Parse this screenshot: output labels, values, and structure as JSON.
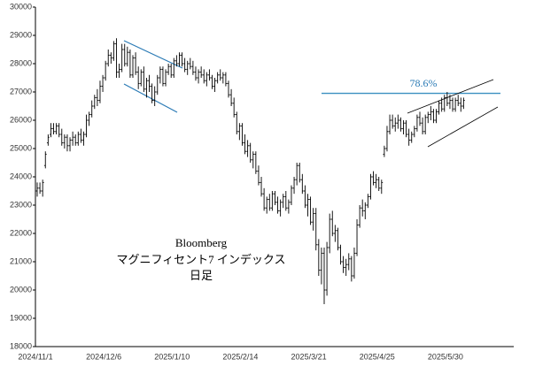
{
  "chart_data": {
    "type": "ohlc",
    "color": "#000000",
    "text_box": [
      "Bloomberg",
      "マグニフィセント7 インデックス",
      "日足"
    ],
    "annotations": [
      "78.6%"
    ],
    "ylim": [
      18000,
      30000
    ],
    "yticks": [
      18000,
      19000,
      20000,
      21000,
      22000,
      23000,
      24000,
      25000,
      26000,
      27000,
      28000,
      29000,
      30000
    ],
    "categories": [
      "2024/11/1",
      null,
      null,
      null,
      null,
      null,
      null,
      null,
      null,
      null,
      null,
      null,
      null,
      null,
      null,
      null,
      null,
      null,
      null,
      null,
      null,
      null,
      null,
      null,
      null,
      "2024/12/6",
      null,
      null,
      null,
      null,
      null,
      null,
      null,
      null,
      null,
      null,
      null,
      null,
      null,
      null,
      null,
      null,
      null,
      null,
      null,
      null,
      null,
      null,
      null,
      null,
      "2025/1/10",
      null,
      null,
      null,
      null,
      null,
      null,
      null,
      null,
      null,
      null,
      null,
      null,
      null,
      null,
      null,
      null,
      null,
      null,
      null,
      null,
      null,
      null,
      null,
      null,
      "2025/2/14",
      null,
      null,
      null,
      null,
      null,
      null,
      null,
      null,
      null,
      null,
      null,
      null,
      null,
      null,
      null,
      null,
      null,
      null,
      null,
      null,
      null,
      null,
      null,
      null,
      "2025/3/21",
      null,
      null,
      null,
      null,
      null,
      null,
      null,
      null,
      null,
      null,
      null,
      null,
      null,
      null,
      null,
      null,
      null,
      null,
      null,
      null,
      null,
      null,
      null,
      null,
      "2025/4/25",
      null,
      null,
      null,
      null,
      null,
      null,
      null,
      null,
      null,
      null,
      null,
      null,
      null,
      null,
      null,
      null,
      null,
      null,
      null,
      null,
      null,
      null,
      null,
      null,
      "2025/5/30",
      null,
      null,
      null,
      null,
      null,
      null
    ],
    "ohlc": [
      [
        23500,
        23800,
        23300,
        23600
      ],
      [
        23600,
        23800,
        23400,
        23500
      ],
      [
        23500,
        23900,
        23300,
        23800
      ],
      [
        24400,
        24900,
        24300,
        24800
      ],
      [
        25200,
        25500,
        25100,
        25400
      ],
      [
        25500,
        25900,
        25400,
        25700
      ],
      [
        25700,
        25900,
        25500,
        25600
      ],
      [
        25600,
        25900,
        25500,
        25800
      ],
      [
        25800,
        25900,
        25400,
        25500
      ],
      [
        25500,
        25700,
        25100,
        25200
      ],
      [
        25200,
        25500,
        25000,
        25400
      ],
      [
        25400,
        25500,
        24900,
        25100
      ],
      [
        25100,
        25400,
        24900,
        25300
      ],
      [
        25300,
        25600,
        25100,
        25400
      ],
      [
        25400,
        25500,
        25100,
        25200
      ],
      [
        25200,
        25600,
        25100,
        25500
      ],
      [
        25500,
        25700,
        25200,
        25300
      ],
      [
        25300,
        25600,
        25100,
        25500
      ],
      [
        25500,
        26200,
        25400,
        26000
      ],
      [
        26000,
        26300,
        25800,
        26200
      ],
      [
        26200,
        26700,
        26100,
        26500
      ],
      [
        26500,
        26900,
        26400,
        26800
      ],
      [
        26800,
        27100,
        26500,
        26700
      ],
      [
        26700,
        27400,
        26600,
        27200
      ],
      [
        27200,
        27600,
        27000,
        27500
      ],
      [
        27500,
        28100,
        27400,
        28000
      ],
      [
        28000,
        28500,
        27900,
        28300
      ],
      [
        28300,
        28400,
        28000,
        28200
      ],
      [
        28200,
        28800,
        28100,
        28700
      ],
      [
        28700,
        28900,
        27500,
        27700
      ],
      [
        27700,
        28000,
        27500,
        27800
      ],
      [
        27800,
        28700,
        27700,
        28500
      ],
      [
        28500,
        28700,
        27900,
        28000
      ],
      [
        28000,
        28600,
        27900,
        28400
      ],
      [
        28400,
        28500,
        27500,
        27600
      ],
      [
        27600,
        28300,
        27500,
        28200
      ],
      [
        28200,
        28400,
        27600,
        27700
      ],
      [
        27700,
        27900,
        27100,
        27300
      ],
      [
        27300,
        27800,
        27200,
        27700
      ],
      [
        27700,
        27900,
        27000,
        27100
      ],
      [
        27100,
        27500,
        26800,
        27400
      ],
      [
        27400,
        27600,
        27000,
        27200
      ],
      [
        27200,
        27300,
        26600,
        26700
      ],
      [
        26700,
        27200,
        26500,
        27000
      ],
      [
        27000,
        27600,
        26900,
        27500
      ],
      [
        27500,
        27900,
        27300,
        27800
      ],
      [
        27800,
        27900,
        27200,
        27300
      ],
      [
        27300,
        27800,
        27200,
        27700
      ],
      [
        27700,
        28000,
        27600,
        27900
      ],
      [
        27900,
        28000,
        27500,
        27600
      ],
      [
        27600,
        28200,
        27500,
        28100
      ],
      [
        28100,
        28300,
        27900,
        28000
      ],
      [
        28000,
        28400,
        27900,
        28300
      ],
      [
        28300,
        28400,
        27900,
        28000
      ],
      [
        28000,
        28200,
        27700,
        27800
      ],
      [
        27800,
        28100,
        27600,
        28000
      ],
      [
        28000,
        28200,
        27800,
        27900
      ],
      [
        27900,
        28100,
        27600,
        27700
      ],
      [
        27700,
        27900,
        27400,
        27500
      ],
      [
        27500,
        27800,
        27300,
        27700
      ],
      [
        27700,
        27900,
        27500,
        27600
      ],
      [
        27600,
        27800,
        27300,
        27400
      ],
      [
        27400,
        27700,
        27200,
        27600
      ],
      [
        27600,
        27800,
        27400,
        27500
      ],
      [
        27500,
        27600,
        27100,
        27200
      ],
      [
        27200,
        27500,
        27000,
        27400
      ],
      [
        27400,
        27700,
        27300,
        27600
      ],
      [
        27600,
        27800,
        27400,
        27500
      ],
      [
        27500,
        27700,
        27300,
        27600
      ],
      [
        27600,
        27700,
        27200,
        27300
      ],
      [
        27300,
        27400,
        26800,
        26900
      ],
      [
        26900,
        27100,
        26500,
        26600
      ],
      [
        26600,
        26800,
        26100,
        26200
      ],
      [
        26200,
        26300,
        25500,
        25600
      ],
      [
        25600,
        25900,
        25300,
        25800
      ],
      [
        25800,
        25900,
        25100,
        25200
      ],
      [
        25200,
        25500,
        24800,
        24900
      ],
      [
        24900,
        25300,
        24700,
        25100
      ],
      [
        25100,
        25200,
        24500,
        24600
      ],
      [
        24600,
        24900,
        24300,
        24800
      ],
      [
        24800,
        24900,
        24100,
        24200
      ],
      [
        24200,
        24400,
        23700,
        23800
      ],
      [
        23800,
        24000,
        23300,
        23400
      ],
      [
        23400,
        23600,
        22800,
        22900
      ],
      [
        22900,
        23300,
        22700,
        23200
      ],
      [
        23200,
        23400,
        22800,
        22900
      ],
      [
        22900,
        23500,
        22800,
        23400
      ],
      [
        23400,
        23500,
        23000,
        23100
      ],
      [
        23100,
        23300,
        22700,
        22800
      ],
      [
        22800,
        23200,
        22600,
        23100
      ],
      [
        23100,
        23400,
        22900,
        23300
      ],
      [
        23300,
        23500,
        22800,
        22900
      ],
      [
        22900,
        23200,
        22700,
        23100
      ],
      [
        23100,
        23700,
        23000,
        23600
      ],
      [
        23600,
        24000,
        23400,
        23900
      ],
      [
        23900,
        24500,
        23700,
        24400
      ],
      [
        24400,
        24500,
        23800,
        23900
      ],
      [
        23900,
        24100,
        23400,
        23500
      ],
      [
        23500,
        23700,
        22900,
        23000
      ],
      [
        23000,
        23400,
        22600,
        23200
      ],
      [
        23200,
        23300,
        22300,
        22400
      ],
      [
        22400,
        22900,
        22100,
        22700
      ],
      [
        22700,
        22900,
        21400,
        21600
      ],
      [
        21600,
        21800,
        20500,
        20700
      ],
      [
        20700,
        21500,
        20200,
        21300
      ],
      [
        21300,
        21500,
        19500,
        20000
      ],
      [
        20000,
        21700,
        19800,
        21500
      ],
      [
        21500,
        22700,
        21300,
        22500
      ],
      [
        22500,
        22800,
        21900,
        22000
      ],
      [
        22000,
        22300,
        21700,
        22100
      ],
      [
        22100,
        22200,
        21400,
        21500
      ],
      [
        21500,
        21600,
        20900,
        21000
      ],
      [
        21000,
        21200,
        20600,
        20800
      ],
      [
        20800,
        21100,
        20500,
        20900
      ],
      [
        20900,
        21300,
        20700,
        21100
      ],
      [
        21100,
        21200,
        20300,
        20500
      ],
      [
        20500,
        21500,
        20400,
        21300
      ],
      [
        21300,
        22500,
        21200,
        22300
      ],
      [
        22300,
        23000,
        22200,
        22900
      ],
      [
        22900,
        23200,
        22600,
        22800
      ],
      [
        22800,
        23100,
        22500,
        23000
      ],
      [
        23000,
        23400,
        22900,
        23300
      ],
      [
        23300,
        24100,
        23200,
        24000
      ],
      [
        24000,
        24200,
        23700,
        23800
      ],
      [
        23800,
        24100,
        23600,
        23900
      ],
      [
        23900,
        24000,
        23500,
        23600
      ],
      [
        23600,
        23900,
        23400,
        23800
      ],
      [
        24800,
        25100,
        24700,
        25000
      ],
      [
        25000,
        25800,
        24900,
        25600
      ],
      [
        25600,
        26200,
        25500,
        26000
      ],
      [
        26000,
        26200,
        25700,
        25800
      ],
      [
        25800,
        26100,
        25600,
        25900
      ],
      [
        25900,
        26200,
        25700,
        26000
      ],
      [
        26000,
        26100,
        25600,
        25700
      ],
      [
        25700,
        26000,
        25500,
        25900
      ],
      [
        25900,
        26000,
        25400,
        25500
      ],
      [
        25500,
        25700,
        25100,
        25300
      ],
      [
        25300,
        25600,
        25200,
        25500
      ],
      [
        25500,
        25800,
        25400,
        25700
      ],
      [
        25700,
        26200,
        25600,
        26100
      ],
      [
        26100,
        26300,
        25800,
        25900
      ],
      [
        25900,
        26100,
        25500,
        25600
      ],
      [
        25600,
        26200,
        25500,
        26100
      ],
      [
        26100,
        26300,
        25900,
        26200
      ],
      [
        26200,
        26500,
        26000,
        26300
      ],
      [
        26300,
        26400,
        25900,
        26000
      ],
      [
        26000,
        26400,
        25900,
        26300
      ],
      [
        26300,
        26700,
        26200,
        26600
      ],
      [
        26600,
        26800,
        26300,
        26400
      ],
      [
        26400,
        26900,
        26300,
        26800
      ],
      [
        26800,
        27000,
        26500,
        26600
      ],
      [
        26600,
        26900,
        26400,
        26700
      ],
      [
        26700,
        26800,
        26300,
        26400
      ],
      [
        26400,
        26800,
        26300,
        26700
      ],
      [
        26700,
        26900,
        26500,
        26600
      ],
      [
        26600,
        26800,
        26300,
        26500
      ],
      [
        26500,
        26800,
        26400,
        26700
      ]
    ]
  }
}
